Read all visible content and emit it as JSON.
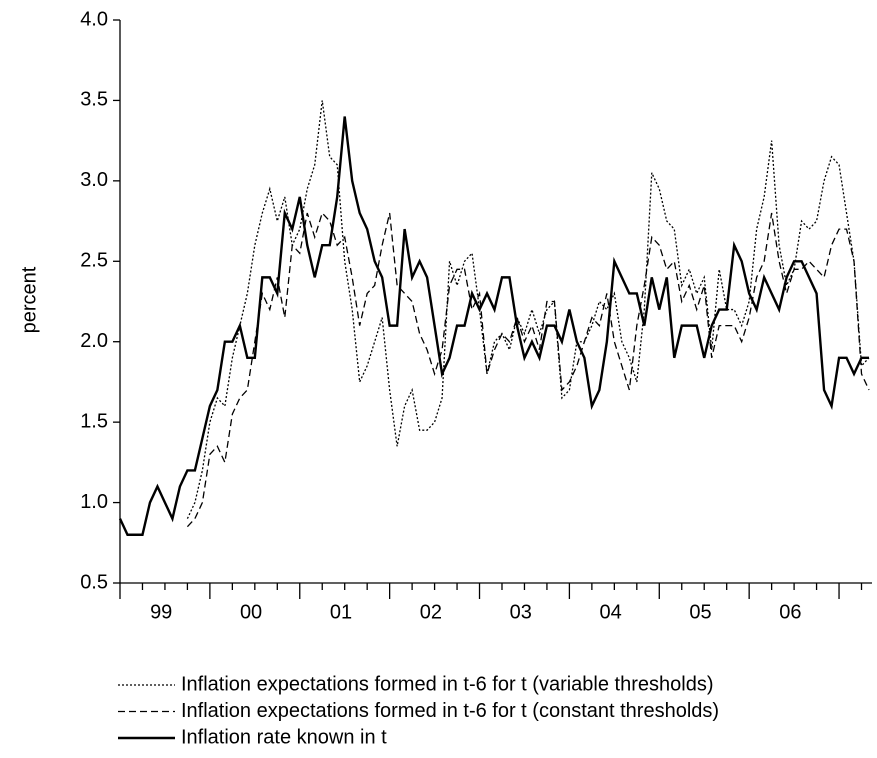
{
  "chart_data": {
    "type": "line",
    "y_label": "percent",
    "categories": [
      null,
      null,
      null,
      null,
      null,
      "99",
      null,
      null,
      null,
      null,
      null,
      null,
      null,
      null,
      null,
      null,
      null,
      "00",
      null,
      null,
      null,
      null,
      null,
      null,
      null,
      null,
      null,
      null,
      null,
      "01",
      null,
      null,
      null,
      null,
      null,
      null,
      null,
      null,
      null,
      null,
      null,
      "02",
      null,
      null,
      null,
      null,
      null,
      null,
      null,
      null,
      null,
      null,
      null,
      "03",
      null,
      null,
      null,
      null,
      null,
      null,
      null,
      null,
      null,
      null,
      null,
      "04",
      null,
      null,
      null,
      null,
      null,
      null,
      null,
      null,
      null,
      null,
      null,
      "05",
      null,
      null,
      null,
      null,
      null,
      null,
      null,
      null,
      null,
      null,
      null,
      "06",
      null,
      null,
      null,
      null,
      null,
      null,
      null,
      null,
      null,
      null,
      null
    ],
    "series": [
      {
        "name": "Inflation expectations formed in t-6 for t (variable thresholds)",
        "color": "#000000",
        "dash": "dotted",
        "values": [
          null,
          null,
          null,
          null,
          null,
          null,
          null,
          null,
          null,
          0.9,
          1.0,
          1.2,
          1.5,
          1.65,
          1.6,
          1.9,
          2.1,
          2.3,
          2.6,
          2.8,
          2.95,
          2.75,
          2.9,
          2.6,
          2.7,
          2.95,
          3.1,
          3.5,
          3.15,
          3.1,
          2.5,
          2.2,
          1.75,
          1.85,
          2.0,
          2.15,
          1.7,
          1.35,
          1.6,
          1.7,
          1.45,
          1.45,
          1.5,
          1.65,
          2.5,
          2.35,
          2.5,
          2.55,
          2.2,
          1.8,
          2.0,
          2.05,
          1.95,
          2.15,
          2.05,
          2.2,
          2.05,
          2.2,
          2.25,
          1.65,
          1.7,
          2.0,
          2.0,
          2.1,
          2.25,
          2.2,
          2.3,
          2.0,
          1.9,
          1.75,
          2.2,
          3.05,
          2.95,
          2.75,
          2.7,
          2.35,
          2.45,
          2.3,
          2.4,
          1.95,
          2.45,
          2.2,
          2.2,
          2.1,
          2.25,
          2.7,
          2.9,
          3.25,
          2.6,
          2.35,
          2.45,
          2.75,
          2.7,
          2.75,
          3.0,
          3.15,
          3.1,
          2.8,
          2.5,
          1.85,
          1.9
        ]
      },
      {
        "name": "Inflation expectations formed in t-6 for t (constant thresholds)",
        "color": "#000000",
        "dash": "dashed",
        "values": [
          null,
          null,
          null,
          null,
          null,
          null,
          null,
          null,
          null,
          0.85,
          0.9,
          1.0,
          1.3,
          1.35,
          1.25,
          1.55,
          1.65,
          1.7,
          2.0,
          2.3,
          2.2,
          2.4,
          2.15,
          2.6,
          2.55,
          2.8,
          2.65,
          2.8,
          2.75,
          2.6,
          2.65,
          2.4,
          2.1,
          2.3,
          2.35,
          2.6,
          2.8,
          2.35,
          2.3,
          2.25,
          2.05,
          1.95,
          1.8,
          1.95,
          2.35,
          2.45,
          2.45,
          2.2,
          2.3,
          1.8,
          1.95,
          2.05,
          2.0,
          2.15,
          2.0,
          2.1,
          1.95,
          2.25,
          2.25,
          1.7,
          1.75,
          1.85,
          2.0,
          2.15,
          2.1,
          2.3,
          2.0,
          1.85,
          1.7,
          2.1,
          2.35,
          2.65,
          2.6,
          2.45,
          2.5,
          2.25,
          2.35,
          2.2,
          2.35,
          1.9,
          2.1,
          2.1,
          2.1,
          2.0,
          2.15,
          2.4,
          2.5,
          2.8,
          2.5,
          2.3,
          2.45,
          2.45,
          2.5,
          2.45,
          2.4,
          2.6,
          2.7,
          2.7,
          2.5,
          1.8,
          1.7
        ]
      },
      {
        "name": "Inflation rate known in t",
        "color": "#000000",
        "dash": "solid",
        "values": [
          0.9,
          0.8,
          0.8,
          0.8,
          1.0,
          1.1,
          1.0,
          0.9,
          1.1,
          1.2,
          1.2,
          1.4,
          1.6,
          1.7,
          2.0,
          2.0,
          2.1,
          1.9,
          1.9,
          2.4,
          2.4,
          2.3,
          2.8,
          2.7,
          2.9,
          2.6,
          2.4,
          2.6,
          2.6,
          2.9,
          3.4,
          3.0,
          2.8,
          2.7,
          2.5,
          2.4,
          2.1,
          2.1,
          2.7,
          2.4,
          2.5,
          2.4,
          2.1,
          1.8,
          1.9,
          2.1,
          2.1,
          2.3,
          2.2,
          2.3,
          2.2,
          2.4,
          2.4,
          2.1,
          1.9,
          2.0,
          1.9,
          2.1,
          2.1,
          2.0,
          2.2,
          2.0,
          1.9,
          1.6,
          1.7,
          2.0,
          2.5,
          2.4,
          2.3,
          2.3,
          2.1,
          2.4,
          2.2,
          2.4,
          1.9,
          2.1,
          2.1,
          2.1,
          1.9,
          2.1,
          2.2,
          2.2,
          2.6,
          2.5,
          2.3,
          2.2,
          2.4,
          2.3,
          2.2,
          2.4,
          2.5,
          2.5,
          2.4,
          2.3,
          1.7,
          1.6,
          1.9,
          1.9,
          1.8,
          1.9,
          1.9
        ]
      }
    ],
    "ylim": [
      0.5,
      4.0
    ],
    "yticks": [
      0.5,
      {
        "value": 1,
        "label": "1.0"
      },
      1.5,
      {
        "value": 2,
        "label": "2.0"
      },
      2.5,
      {
        "value": 3,
        "label": "3.0"
      },
      3.5,
      {
        "value": 4,
        "label": "4.0"
      }
    ],
    "grid": false,
    "legend": "bottom-left"
  }
}
